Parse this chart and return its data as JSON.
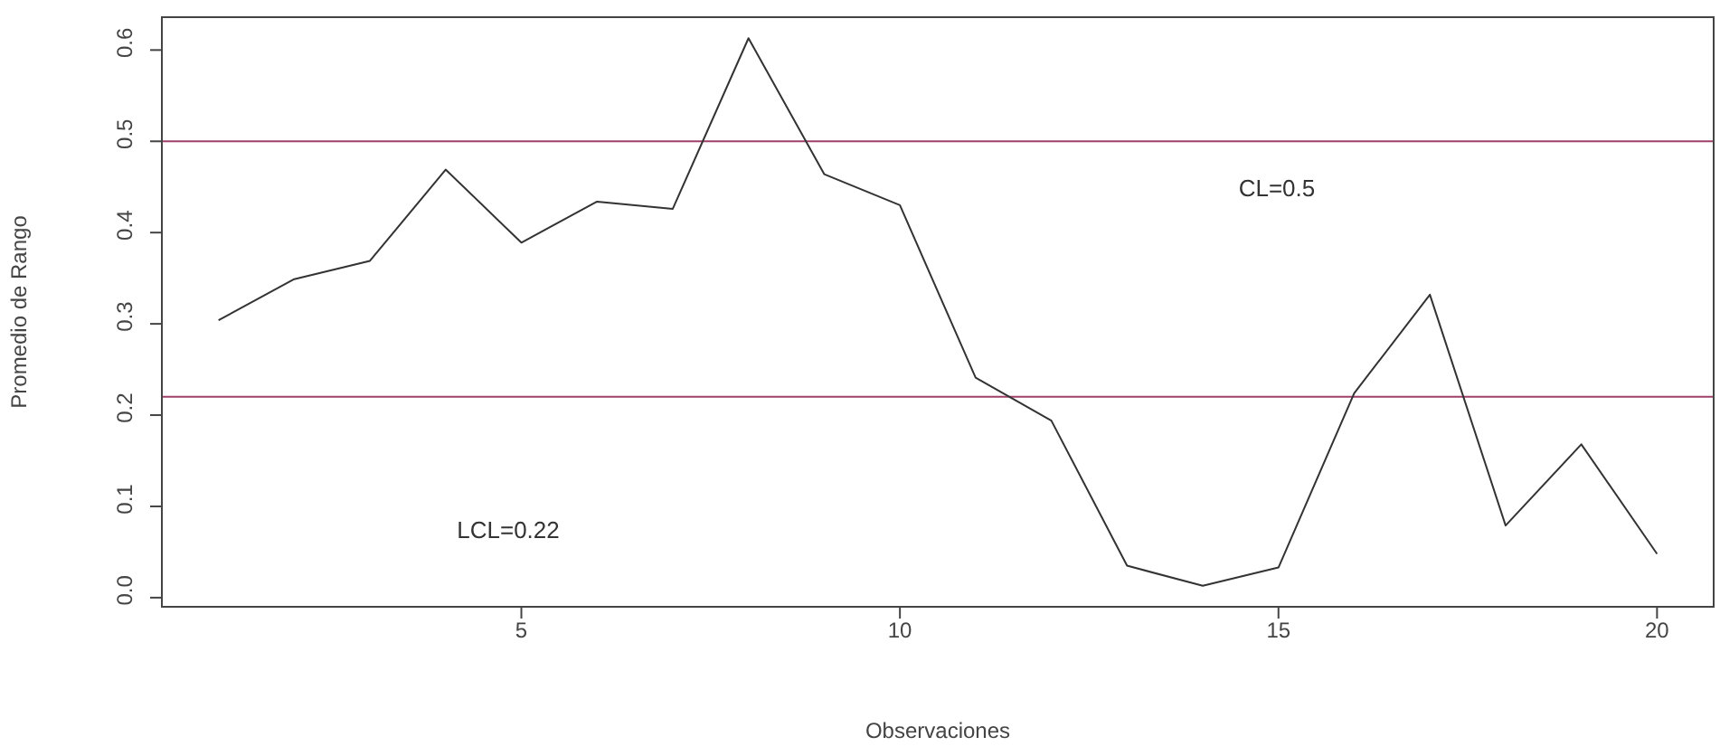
{
  "chart_data": {
    "type": "line",
    "xlabel": "Observaciones",
    "ylabel": "Promedio de Rango",
    "x": [
      1,
      2,
      3,
      4,
      5,
      6,
      7,
      8,
      9,
      10,
      11,
      12,
      13,
      14,
      15,
      16,
      17,
      18,
      19,
      20
    ],
    "series": [
      {
        "color": "#333333",
        "values": [
          0.304,
          0.349,
          0.369,
          0.469,
          0.389,
          0.434,
          0.426,
          0.613,
          0.464,
          0.43,
          0.241,
          0.194,
          0.035,
          0.013,
          0.033,
          0.224,
          0.332,
          0.079,
          0.168,
          0.048
        ]
      }
    ],
    "xlim": [
      0.24,
      20.76
    ],
    "xticks": [
      5,
      10,
      15,
      20
    ],
    "ylim": [
      -0.011,
      0.637
    ],
    "yticks": [
      {
        "value": 0,
        "label": "0.0"
      },
      {
        "value": 0.1,
        "label": "0.1"
      },
      {
        "value": 0.2,
        "label": "0.2"
      },
      {
        "value": 0.3,
        "label": "0.3"
      },
      {
        "value": 0.4,
        "label": "0.4"
      },
      {
        "value": 0.5,
        "label": "0.5"
      },
      {
        "value": 0.6,
        "label": "0.6"
      }
    ],
    "ref_lines": [
      {
        "axis": "y",
        "value": 0.5,
        "color": "#a0406a"
      },
      {
        "axis": "y",
        "value": 0.22,
        "color": "#a0406a"
      }
    ],
    "annotations": [
      "CL=0.5",
      "LCL=0.22"
    ],
    "marker": "none",
    "line_style": "solid"
  }
}
